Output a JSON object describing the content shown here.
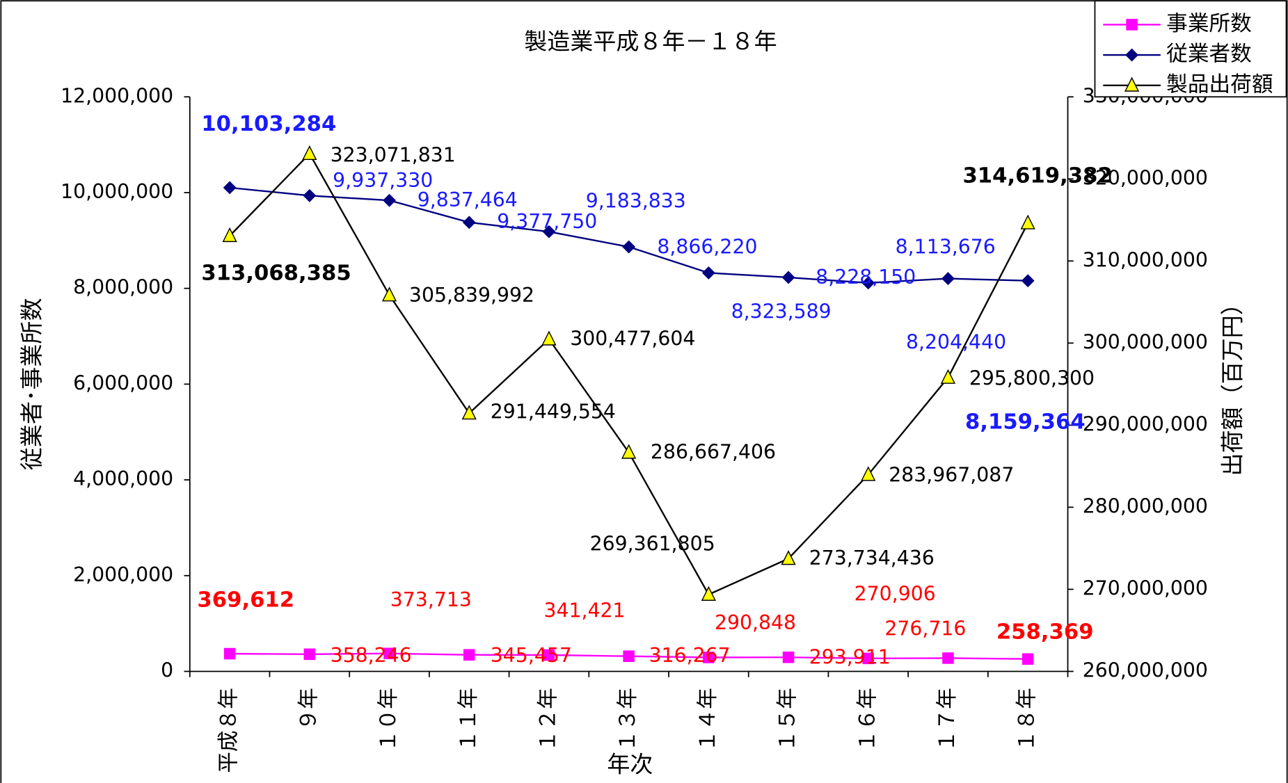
{
  "chart_data": {
    "type": "line",
    "title": "製造業平成８年－１８年",
    "x_label": "年次",
    "y_label": "従業者･事業所数",
    "y2_label": "出荷額（百万円）",
    "categories": [
      "平成８年",
      "９年",
      "１０年",
      "１１年",
      "１２年",
      "１３年",
      "１４年",
      "１５年",
      "１６年",
      "１７年",
      "１８年"
    ],
    "ylim": [
      0,
      12000000
    ],
    "yticks": [
      0,
      {
        "value": 2000000,
        "label": "2,000,000"
      },
      {
        "value": 4000000,
        "label": "4,000,000"
      },
      {
        "value": 6000000,
        "label": "6,000,000"
      },
      {
        "value": 8000000,
        "label": "8,000,000"
      },
      {
        "value": 10000000,
        "label": "10,000,000"
      },
      {
        "value": 12000000,
        "label": "12,000,000"
      }
    ],
    "y2lim": [
      260000000,
      330000000
    ],
    "y2ticks": [
      {
        "value": 260000000,
        "label": "260,000,000"
      },
      {
        "value": 270000000,
        "label": "270,000,000"
      },
      {
        "value": 280000000,
        "label": "280,000,000"
      },
      {
        "value": 290000000,
        "label": "290,000,000"
      },
      {
        "value": 300000000,
        "label": "300,000,000"
      },
      {
        "value": 310000000,
        "label": "310,000,000"
      },
      {
        "value": 320000000,
        "label": "320,000,000"
      },
      {
        "value": 330000000,
        "label": "330,000,000"
      }
    ],
    "legend": "top-right",
    "series": [
      {
        "name": "事業所数",
        "color": "#ff00ff",
        "marker": "square",
        "values": [
          369612,
          358246,
          373713,
          345457,
          341421,
          316267,
          290848,
          293911,
          270906,
          276716,
          258369
        ],
        "value_labels": [
          "369,612",
          "358,246",
          "373,713",
          "345,457",
          "341,421",
          "316,267",
          "290,848",
          "293,911",
          "270,906",
          "276,716",
          "258,369"
        ]
      },
      {
        "name": "従業者数",
        "color": "#000080",
        "marker": "diamond",
        "values": [
          10103284,
          9937330,
          9837464,
          9377750,
          9183833,
          8866220,
          8323589,
          8228150,
          8113676,
          8204440,
          8159364
        ],
        "value_labels": [
          "10,103,284",
          "9,937,330",
          "9,837,464",
          "9,377,750",
          "9,183,833",
          "8,866,220",
          "8,323,589",
          "8,228,150",
          "8,113,676",
          "8,204,440",
          "8,159,364"
        ]
      },
      {
        "name": "製品出荷額",
        "color": "#000000",
        "marker": "triangle",
        "axis": "y2",
        "values": [
          313068385,
          323071831,
          305839992,
          291449554,
          300477604,
          286667406,
          269361805,
          273734436,
          283967087,
          295800300,
          314619382
        ],
        "value_labels": [
          "313,068,385",
          "323,071,831",
          "305,839,992",
          "291,449,554",
          "300,477,604",
          "286,667,406",
          "269,361,805",
          "273,734,436",
          "283,967,087",
          "295,800,300",
          "314,619,382"
        ]
      }
    ]
  }
}
